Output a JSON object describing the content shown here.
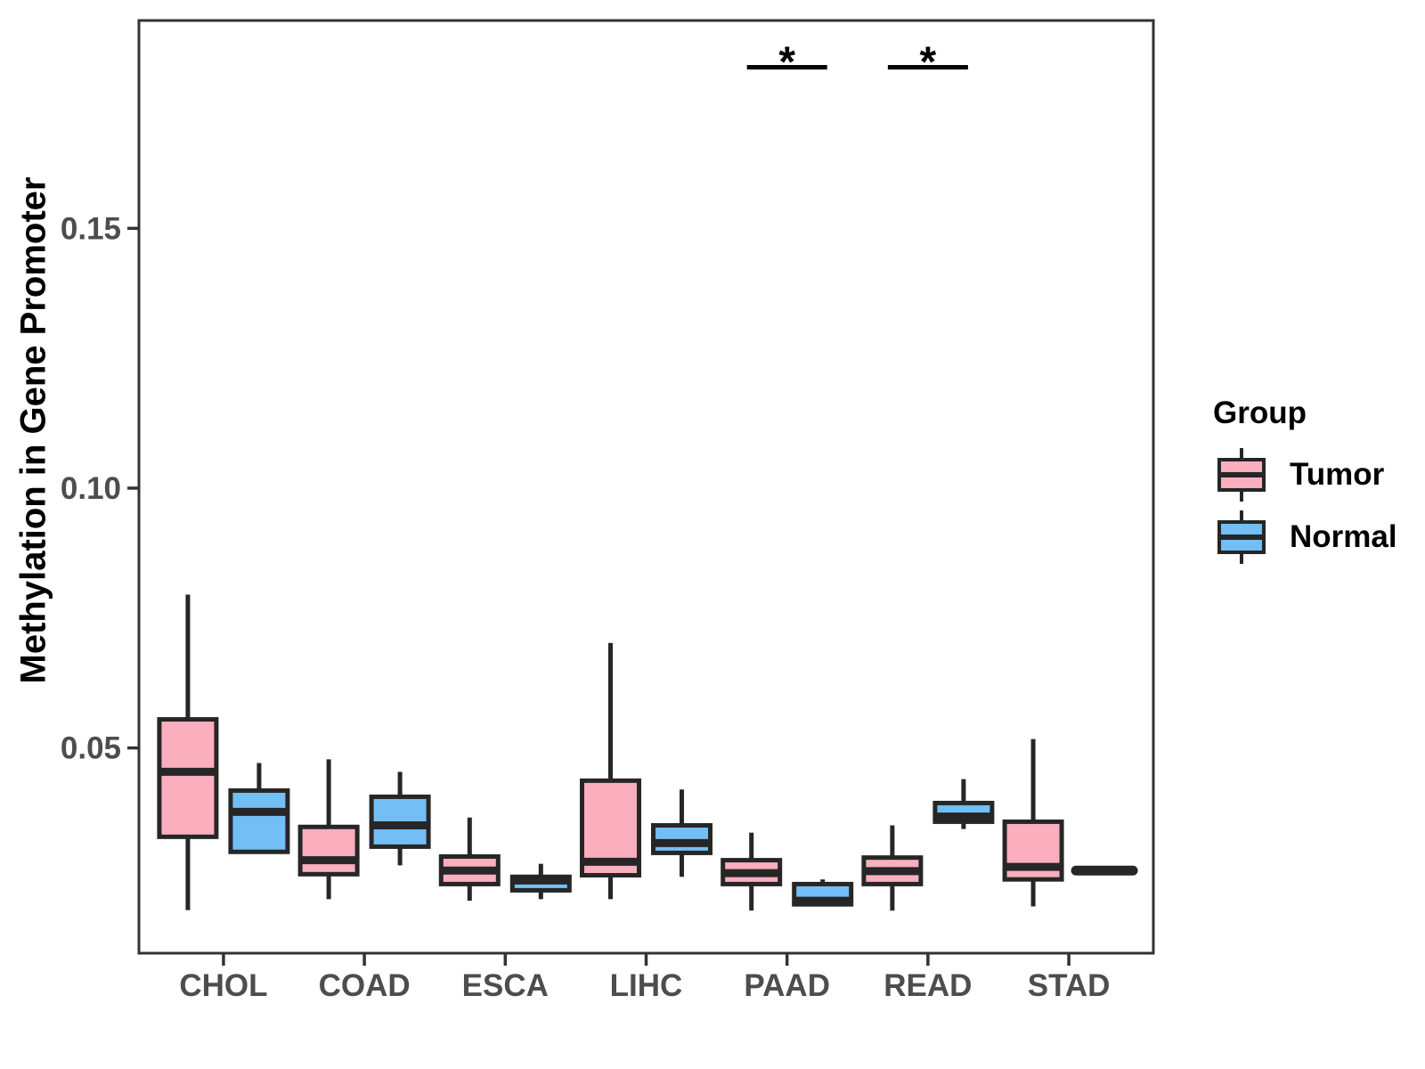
{
  "chart_data": {
    "type": "boxplot",
    "title": "",
    "ylabel": "Methylation in Gene Promoter",
    "xlabel": "",
    "categories": [
      "CHOL",
      "COAD",
      "ESCA",
      "LIHC",
      "PAAD",
      "READ",
      "STAD"
    ],
    "yticks": [
      0.05,
      0.1,
      0.15
    ],
    "ytick_labels": [
      "0.05",
      "0.10",
      "0.15"
    ],
    "ylim": [
      0.0105,
      0.19
    ],
    "grid": false,
    "legend_position": "right",
    "series": [
      {
        "name": "Tumor",
        "color": "#FAAEBE",
        "boxes": [
          {
            "min": 0.0188,
            "q1": 0.0329,
            "median": 0.0454,
            "q3": 0.0555,
            "max": 0.0795
          },
          {
            "min": 0.0209,
            "q1": 0.0257,
            "median": 0.0284,
            "q3": 0.0348,
            "max": 0.0478
          },
          {
            "min": 0.0206,
            "q1": 0.0238,
            "median": 0.0264,
            "q3": 0.0291,
            "max": 0.0366
          },
          {
            "min": 0.0209,
            "q1": 0.0255,
            "median": 0.0281,
            "q3": 0.0437,
            "max": 0.0702
          },
          {
            "min": 0.0187,
            "q1": 0.0238,
            "median": 0.0259,
            "q3": 0.0284,
            "max": 0.0337
          },
          {
            "min": 0.0187,
            "q1": 0.0238,
            "median": 0.0263,
            "q3": 0.0289,
            "max": 0.0351
          },
          {
            "min": 0.0195,
            "q1": 0.0247,
            "median": 0.0271,
            "q3": 0.0358,
            "max": 0.0517
          }
        ]
      },
      {
        "name": "Normal",
        "color": "#73BEF5",
        "boxes": [
          {
            "min": 0.0298,
            "q1": 0.03,
            "median": 0.0377,
            "q3": 0.0418,
            "max": 0.0471
          },
          {
            "min": 0.0274,
            "q1": 0.031,
            "median": 0.0351,
            "q3": 0.0406,
            "max": 0.0454
          },
          {
            "min": 0.0209,
            "q1": 0.0226,
            "median": 0.0245,
            "q3": 0.0252,
            "max": 0.0277
          },
          {
            "min": 0.0252,
            "q1": 0.0298,
            "median": 0.0317,
            "q3": 0.0351,
            "max": 0.042
          },
          {
            "min": 0.0195,
            "q1": 0.0199,
            "median": 0.0206,
            "q3": 0.0238,
            "max": 0.0247
          },
          {
            "min": 0.0344,
            "q1": 0.0358,
            "median": 0.0368,
            "q3": 0.0394,
            "max": 0.044
          },
          {
            "min": 0.0264,
            "q1": 0.0264,
            "median": 0.0264,
            "q3": 0.0264,
            "max": 0.0264
          }
        ]
      }
    ],
    "annotations": [
      {
        "category": "PAAD",
        "label": "*",
        "y": 0.181
      },
      {
        "category": "READ",
        "label": "*",
        "y": 0.181
      }
    ]
  },
  "legend": {
    "title": "Group",
    "entries": [
      {
        "label": "Tumor",
        "color": "#FAAEBE"
      },
      {
        "label": "Normal",
        "color": "#73BEF5"
      }
    ]
  },
  "colors": {
    "box_border": "#262626",
    "axis_text": "#4D4D4D",
    "panel_border": "#333333",
    "annotation": "#000000"
  }
}
